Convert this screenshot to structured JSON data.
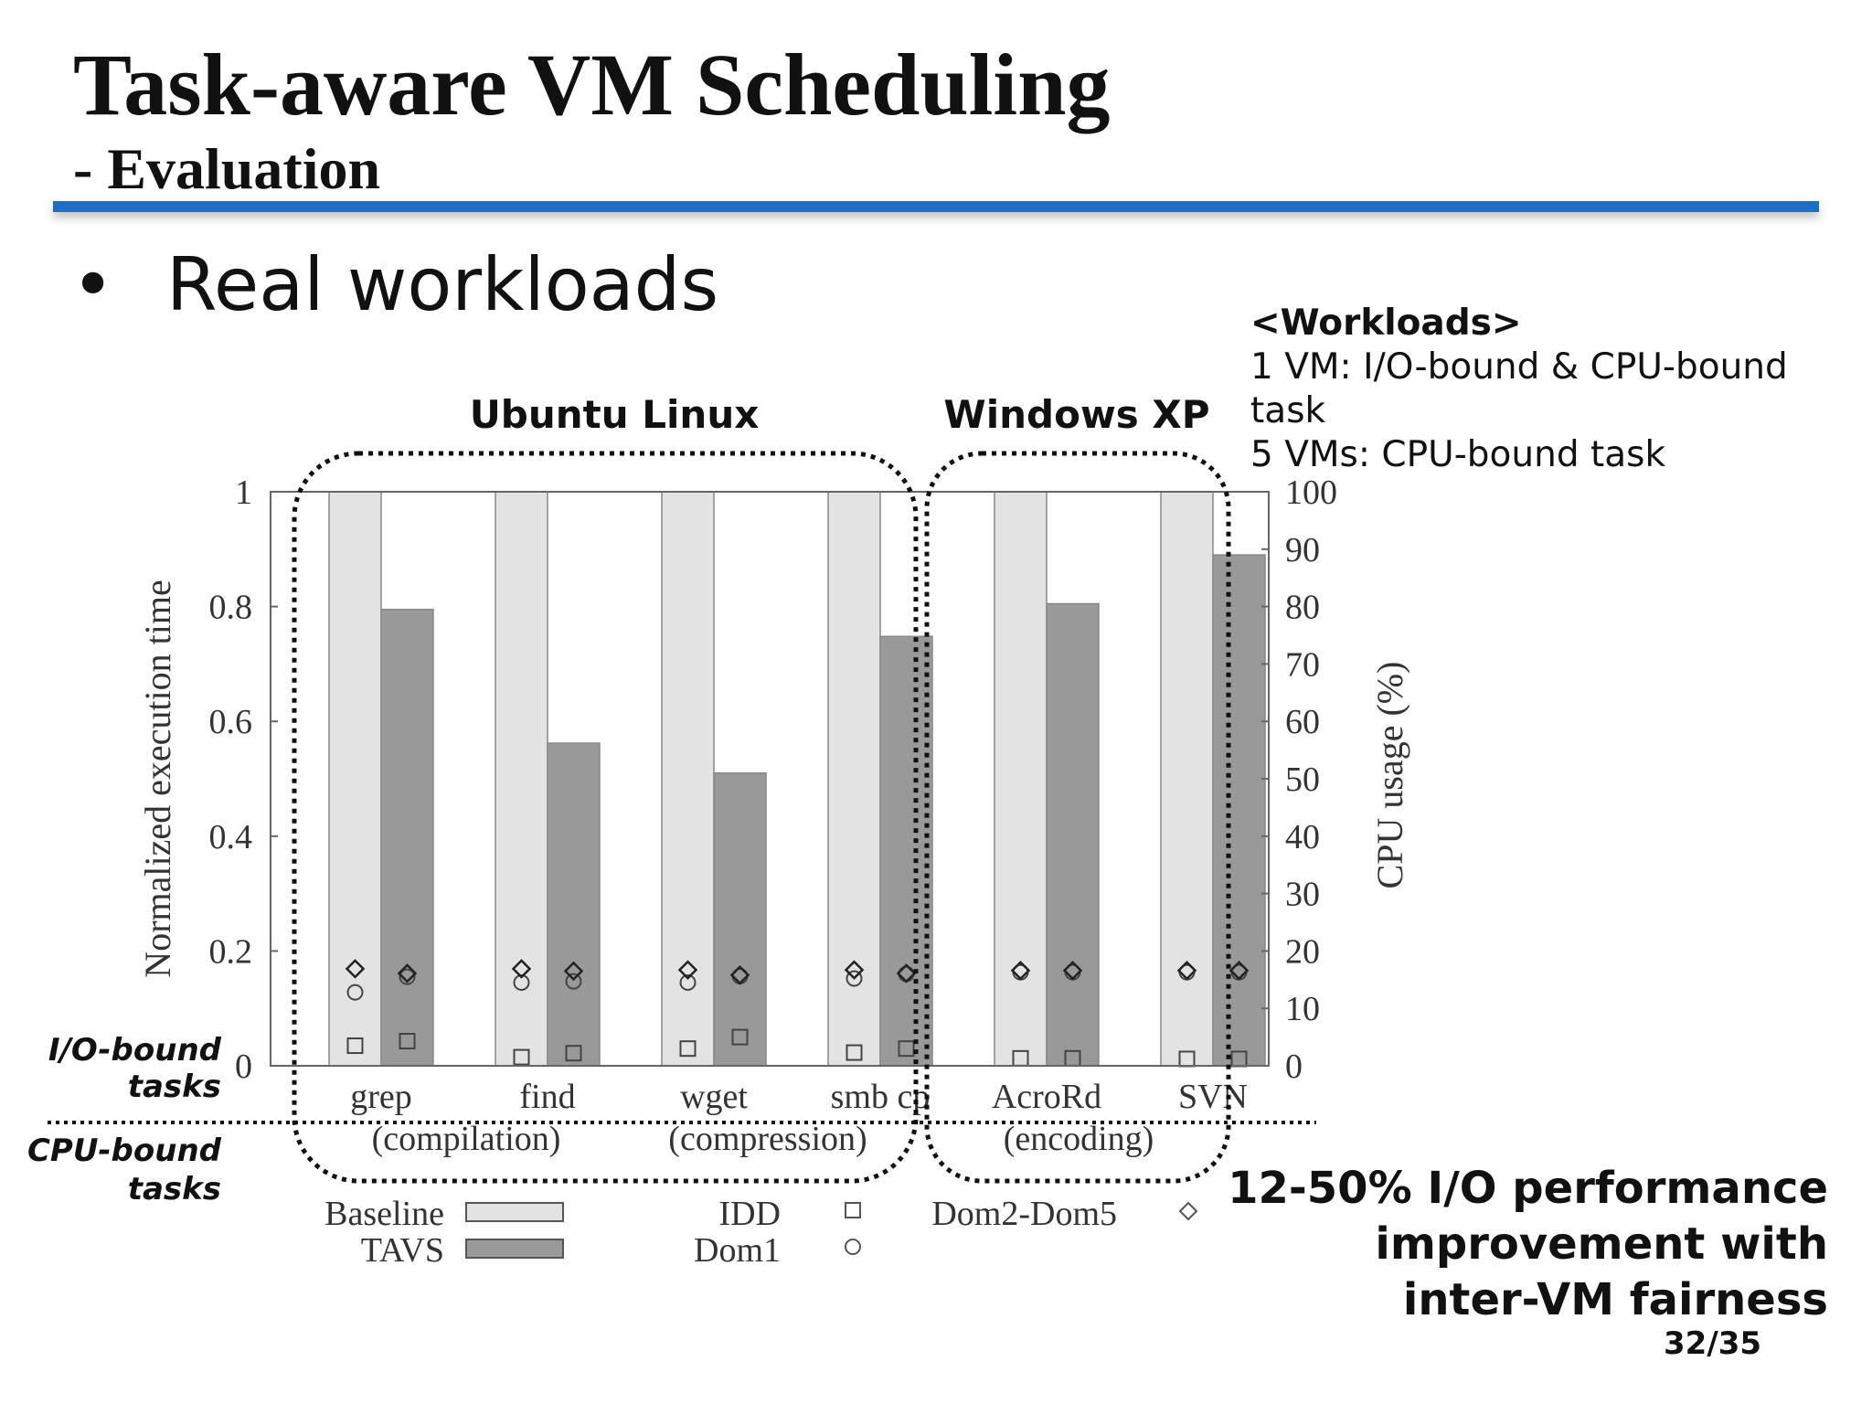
{
  "slide": {
    "title": "Task-aware VM Scheduling",
    "subtitle": "- Evaluation",
    "bullet": "Real workloads",
    "workloads_heading": "<Workloads>",
    "workloads_lines": [
      "1 VM: I/O-bound & CPU-bound task",
      "5 VMs: CPU-bound task"
    ],
    "group_labels": [
      "Ubuntu Linux",
      "Windows XP"
    ],
    "row_labels": {
      "io_bound": [
        "I/O-bound",
        "tasks"
      ],
      "cpu_bound": [
        "CPU-bound",
        "tasks"
      ]
    },
    "conclusion": [
      "12-50% I/O performance",
      "improvement with",
      "inter-VM fairness"
    ],
    "page_number": "32/35",
    "colors": {
      "rule": "#1c6fc4",
      "baseline": "#e3e3e3",
      "tavs": "#999999"
    }
  },
  "chart_data": {
    "type": "bar",
    "categories": [
      "grep",
      "find",
      "wget",
      "smb cp",
      "AcroRd",
      "SVN"
    ],
    "cpu_task_labels": [
      "(compilation)",
      "(compression)",
      "(encoding)"
    ],
    "ylabel": "Normalized execution time",
    "ylabel_right": "CPU usage (%)",
    "ylim": [
      0,
      1
    ],
    "ylim_right": [
      0,
      100
    ],
    "yticks": [
      "0",
      "0.2",
      "0.4",
      "0.6",
      "0.8",
      "1"
    ],
    "yticks_right": [
      "0",
      "10",
      "20",
      "30",
      "40",
      "50",
      "60",
      "70",
      "80",
      "90",
      "100"
    ],
    "series": [
      {
        "name": "Baseline",
        "values": [
          1,
          1,
          1,
          1,
          1,
          1
        ]
      },
      {
        "name": "TAVS",
        "values": [
          0.795,
          0.562,
          0.51,
          0.748,
          0.805,
          0.89
        ]
      }
    ],
    "cpu_usage": [
      {
        "name": "IDD",
        "marker": "square",
        "baseline": [
          3.5,
          1.5,
          3,
          2.3,
          1.3,
          1.2
        ],
        "tavs": [
          4.3,
          2.2,
          5,
          3,
          1.3,
          1.2
        ]
      },
      {
        "name": "Dom1",
        "marker": "circle",
        "baseline": [
          12.8,
          14.5,
          14.5,
          15.2,
          16.3,
          16.3
        ],
        "tavs": [
          15.5,
          14.7,
          15.6,
          16,
          16.3,
          16.3
        ]
      },
      {
        "name": "Dom2-Dom5",
        "marker": "diamond",
        "baseline": [
          16.9,
          16.9,
          16.7,
          16.7,
          16.6,
          16.6
        ],
        "tavs": [
          16.1,
          16.5,
          15.8,
          16.1,
          16.6,
          16.6
        ]
      }
    ],
    "legend": [
      "Baseline",
      "TAVS",
      "IDD",
      "Dom1",
      "Dom2-Dom5"
    ],
    "legend_placement": "bottom",
    "grid": false
  }
}
